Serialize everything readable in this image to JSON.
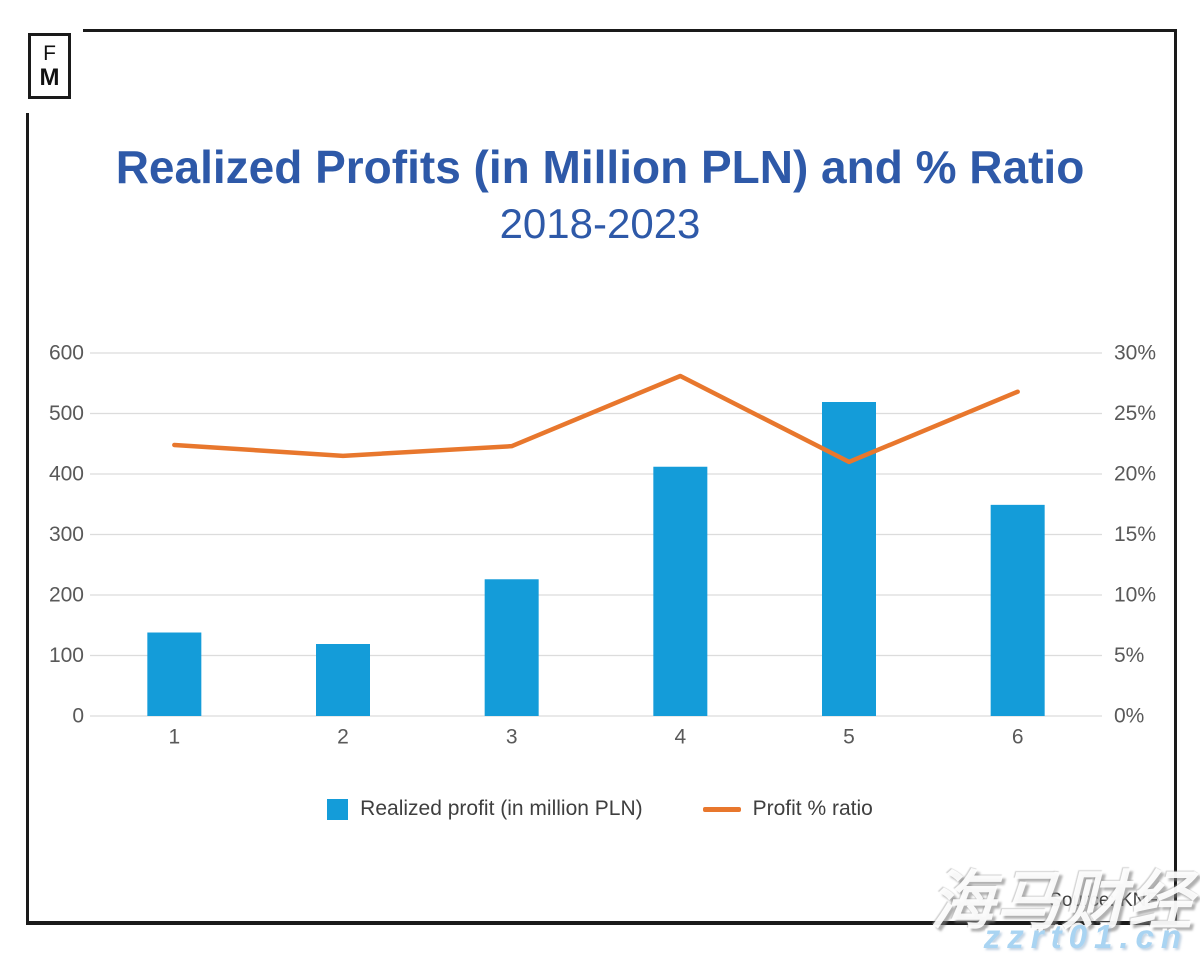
{
  "logo": {
    "line1": "F",
    "line2": "M"
  },
  "header": {
    "title": "Realized Profits (in Million PLN) and % Ratio",
    "subtitle": "2018-2023",
    "title_color": "#2E59A8"
  },
  "chart_data": {
    "type": "combo (bar + line)",
    "categories": [
      "1",
      "2",
      "3",
      "4",
      "5",
      "6"
    ],
    "series": [
      {
        "name": "Realized profit (in million PLN)",
        "type": "bar",
        "axis": "left",
        "color": "#149CD9",
        "values": [
          138,
          119,
          226,
          412,
          519,
          349
        ]
      },
      {
        "name": "Profit % ratio",
        "type": "line",
        "axis": "right",
        "color": "#E8772D",
        "values": [
          22.4,
          21.5,
          22.3,
          28.1,
          21.0,
          26.8
        ]
      }
    ],
    "left_axis": {
      "min": 0,
      "max": 600,
      "ticks": [
        "0",
        "100",
        "200",
        "300",
        "400",
        "500",
        "600"
      ]
    },
    "right_axis": {
      "min": 0,
      "max": 30,
      "ticks": [
        "0%",
        "5%",
        "10%",
        "15%",
        "20%",
        "25%",
        "30%"
      ]
    },
    "grid": true,
    "grid_color": "#DCDCDC",
    "axis_text_color": "#595959",
    "legend_position": "bottom"
  },
  "footer": {
    "source": "Source: KNF"
  },
  "watermark": {
    "line1": "海马财经",
    "line2": "zzrt01.cn",
    "color": "#A9D4F2"
  }
}
